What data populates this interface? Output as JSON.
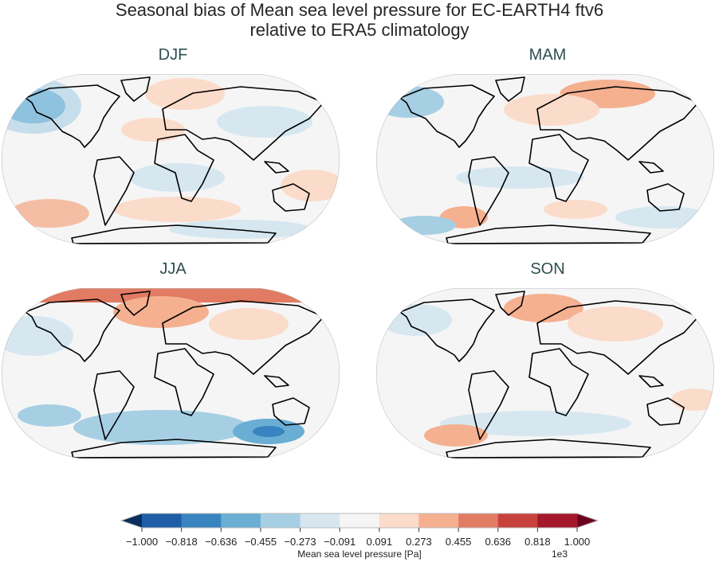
{
  "figure": {
    "title_line1": "Seasonal bias of Mean sea level pressure for EC-EARTH4 ftv6",
    "title_line2": "relative to ERA5 climatology"
  },
  "panels": [
    {
      "title": "DJF"
    },
    {
      "title": "MAM"
    },
    {
      "title": "JJA"
    },
    {
      "title": "SON"
    }
  ],
  "colorbar": {
    "label": "Mean sea level pressure [Pa]",
    "offset_label": "1e3",
    "ticks": [
      "−1.000",
      "−0.818",
      "−0.636",
      "−0.455",
      "−0.273",
      "−0.091",
      "0.091",
      "0.273",
      "0.455",
      "0.636",
      "0.818",
      "1.000"
    ],
    "colors": [
      "#1f5ea6",
      "#3884c0",
      "#6aaed4",
      "#a6cfe4",
      "#d6e7f0",
      "#f5f5f5",
      "#fbdbca",
      "#f5b090",
      "#e27b63",
      "#c8423d",
      "#a5172a"
    ],
    "under_color": "#0a2f5e",
    "over_color": "#6a0220",
    "extend": "both",
    "range": [
      -1000,
      1000
    ]
  }
}
